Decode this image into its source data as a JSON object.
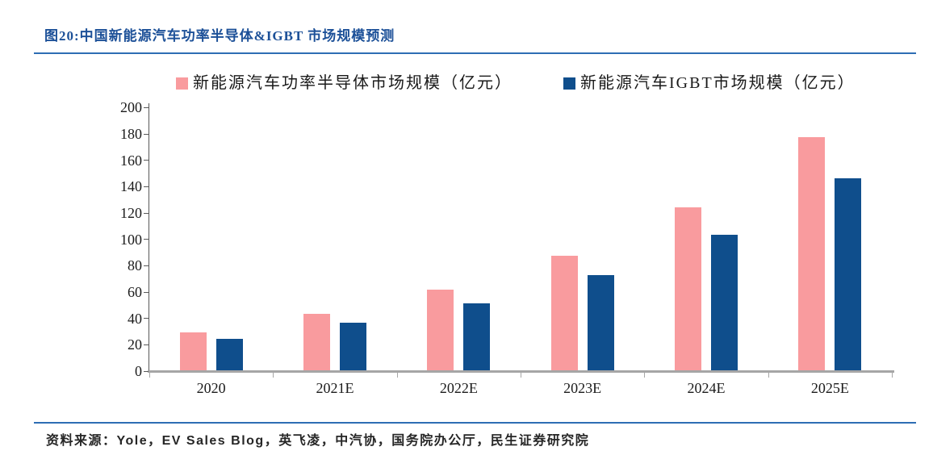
{
  "figure": {
    "title": "图20:中国新能源汽车功率半导体&IGBT 市场规模预测",
    "source": "资料来源：Yole，EV Sales Blog，英飞凌，中汽协，国务院办公厅，民生证券研究院"
  },
  "colors": {
    "title_blue": "#1C5098",
    "rule_blue": "#2E6DB4",
    "series_pink": "#F99B9E",
    "series_blue": "#0F4E8C",
    "axis_baseline_gray": "#A6A6A6",
    "axis_line_dark": "#595959",
    "label_dark": "#1b1b1b"
  },
  "chart_data": {
    "type": "bar",
    "title": "中国新能源汽车功率半导体&IGBT市场规模预测",
    "categories": [
      "2020",
      "2021E",
      "2022E",
      "2023E",
      "2024E",
      "2025E"
    ],
    "series": [
      {
        "name": "新能源汽车功率半导体市场规模（亿元）",
        "color": "#F99B9E",
        "values": [
          29,
          43,
          61,
          87,
          124,
          177
        ]
      },
      {
        "name": "新能源汽车IGBT市场规模（亿元）",
        "color": "#0F4E8C",
        "values": [
          24,
          36,
          51,
          72,
          103,
          146
        ]
      }
    ],
    "xlabel": "",
    "ylabel": "",
    "ylim": [
      0,
      200
    ],
    "ytick_step": 20,
    "yticks": [
      0,
      20,
      40,
      60,
      80,
      100,
      120,
      140,
      160,
      180,
      200
    ],
    "grid": false,
    "legend_position": "top"
  }
}
